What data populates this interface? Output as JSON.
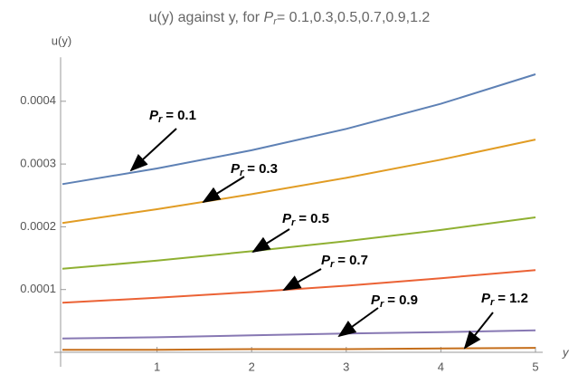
{
  "chart_data": {
    "type": "line",
    "title": [
      "u(y) against  y, for ",
      "P",
      "r",
      "= 0.1,0.3,0.5,0.7,0.9,1.2"
    ],
    "y_label": "u(y)",
    "x_label": "y",
    "annotation_symbol": "P",
    "annotation_subscript": "r",
    "annotation_equals": "=",
    "x": [
      0,
      1,
      2,
      3,
      4,
      5
    ],
    "xlim": [
      0,
      5
    ],
    "xticks": [
      1,
      2,
      3,
      4,
      5
    ],
    "ylim": [
      0,
      0.00047
    ],
    "yticks": [
      0.0001,
      0.0002,
      0.0003,
      0.0004
    ],
    "series": [
      {
        "name": "0.1",
        "color": "#5e81b5",
        "values": [
          0.000268,
          0.000293,
          0.000322,
          0.000356,
          0.000396,
          0.000443
        ]
      },
      {
        "name": "0.3",
        "color": "#e19c24",
        "values": [
          0.000206,
          0.000228,
          0.000252,
          0.000278,
          0.000307,
          0.000339
        ]
      },
      {
        "name": "0.5",
        "color": "#8fb032",
        "values": [
          0.000133,
          0.000146,
          0.000161,
          0.000177,
          0.000195,
          0.000215
        ]
      },
      {
        "name": "0.7",
        "color": "#eb6235",
        "values": [
          7.9e-05,
          8.7e-05,
          9.6e-05,
          0.000106,
          0.000118,
          0.000131
        ]
      },
      {
        "name": "0.9",
        "color": "#8778b3",
        "values": [
          2.2e-05,
          2.4e-05,
          2.7e-05,
          3e-05,
          3.2e-05,
          3.5e-05
        ]
      },
      {
        "name": "1.2",
        "color": "#c56e1a",
        "values": [
          4e-06,
          4e-06,
          5e-06,
          5e-06,
          6e-06,
          7e-06
        ]
      }
    ]
  }
}
